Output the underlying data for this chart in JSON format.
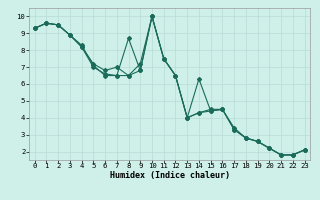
{
  "xlabel": "Humidex (Indice chaleur)",
  "ylabel": "",
  "bg_color": "#cef0e8",
  "grid_color": "#b8ddd6",
  "line_color": "#1a6b5a",
  "xlim": [
    -0.5,
    23.5
  ],
  "ylim": [
    1.5,
    10.5
  ],
  "xticks": [
    0,
    1,
    2,
    3,
    4,
    5,
    6,
    7,
    8,
    9,
    10,
    11,
    12,
    13,
    14,
    15,
    16,
    17,
    18,
    19,
    20,
    21,
    22,
    23
  ],
  "yticks": [
    2,
    3,
    4,
    5,
    6,
    7,
    8,
    9,
    10
  ],
  "line1_x": [
    0,
    1,
    2,
    3,
    4,
    5,
    6,
    7,
    8,
    9,
    10,
    11,
    12,
    13,
    14,
    15,
    16,
    17,
    18,
    19,
    20,
    21,
    22,
    23
  ],
  "line1_y": [
    9.3,
    9.6,
    9.5,
    8.9,
    8.2,
    7.0,
    6.6,
    6.5,
    8.7,
    6.8,
    10.0,
    7.5,
    6.5,
    4.0,
    6.3,
    4.4,
    4.5,
    3.4,
    2.8,
    2.6,
    2.2,
    1.8,
    1.8,
    2.1
  ],
  "line2_x": [
    0,
    1,
    2,
    3,
    4,
    5,
    6,
    7,
    8,
    9,
    10,
    11,
    12,
    13,
    14,
    15,
    16,
    17,
    18,
    19,
    20,
    21,
    22,
    23
  ],
  "line2_y": [
    9.3,
    9.6,
    9.5,
    8.9,
    8.2,
    7.2,
    6.8,
    7.0,
    6.5,
    7.2,
    10.0,
    7.5,
    6.5,
    4.0,
    4.3,
    4.5,
    4.5,
    3.3,
    2.8,
    2.6,
    2.2,
    1.8,
    1.8,
    2.1
  ],
  "line3_x": [
    0,
    1,
    2,
    3,
    4,
    5,
    6,
    7,
    8,
    9,
    10,
    11,
    12,
    13,
    14,
    15,
    16,
    17,
    18,
    19,
    20,
    21,
    22,
    23
  ],
  "line3_y": [
    9.3,
    9.6,
    9.5,
    8.9,
    8.3,
    7.1,
    6.5,
    6.5,
    6.5,
    6.8,
    10.0,
    7.5,
    6.5,
    4.0,
    4.3,
    4.4,
    4.5,
    3.3,
    2.8,
    2.6,
    2.2,
    1.8,
    1.8,
    2.1
  ]
}
